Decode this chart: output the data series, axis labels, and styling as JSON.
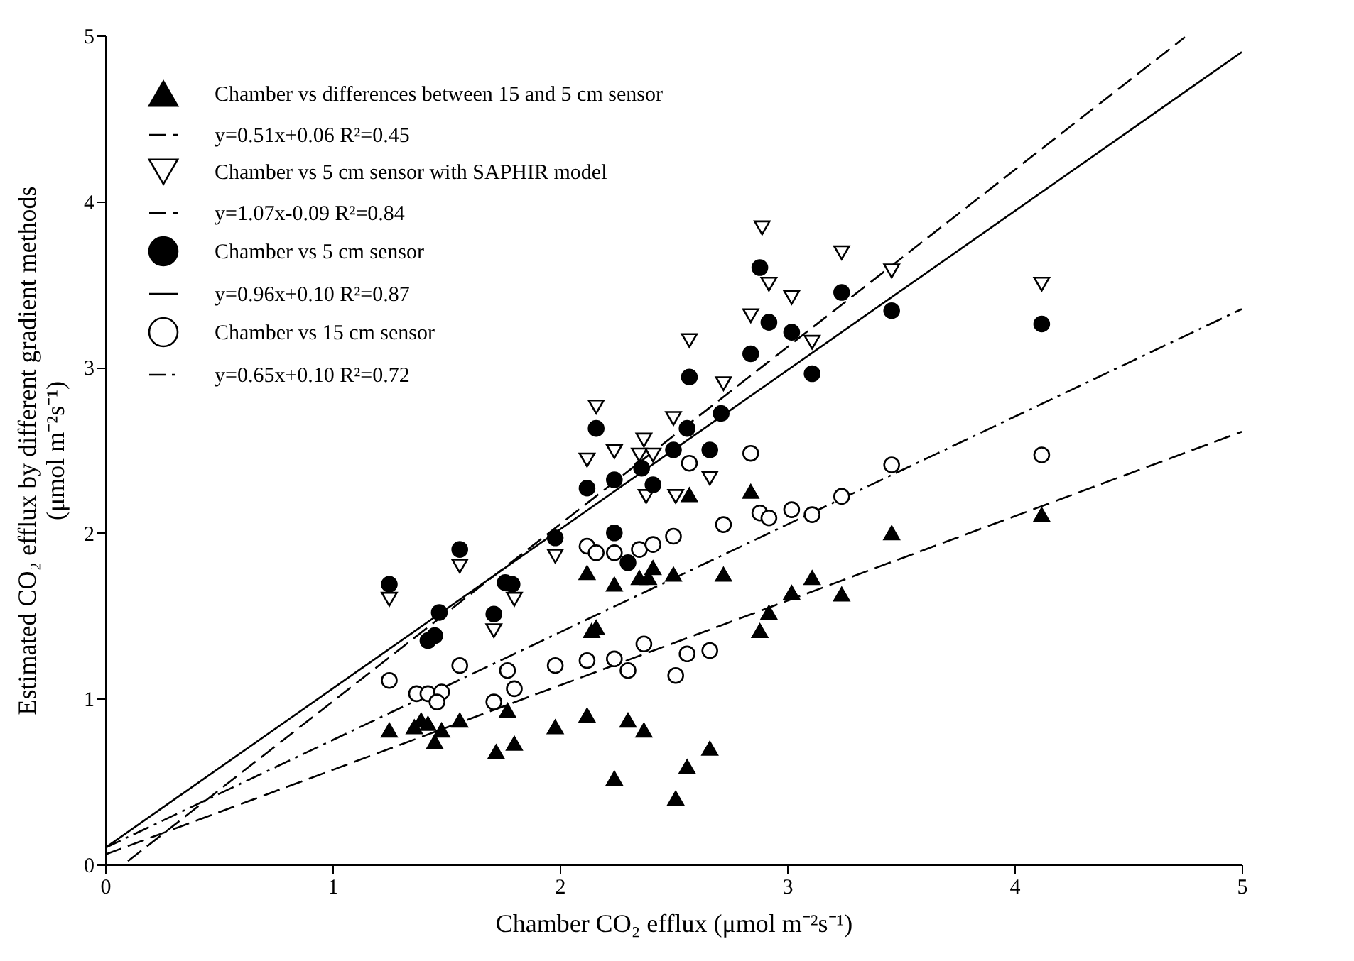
{
  "chart_data": {
    "type": "scatter",
    "xlabel": "Chamber CO₂ efflux  (μmol m⁻²s⁻¹)",
    "ylabel": [
      "Estimated CO₂ efflux by different gradient methods",
      "(μmol m⁻²s⁻¹)"
    ],
    "xlim": [
      0,
      5
    ],
    "ylim": [
      0,
      5
    ],
    "xticks": [
      0,
      1,
      2,
      3,
      4,
      5
    ],
    "yticks": [
      0,
      1,
      2,
      3,
      4,
      5
    ],
    "grid": false,
    "legend": "top left",
    "series": [
      {
        "name": "Chamber vs differences between 15 and 5 cm sensor",
        "type": "scatter",
        "marker": "triangle",
        "color": "#000000",
        "x": [
          1.25,
          1.36,
          1.39,
          1.42,
          1.45,
          1.48,
          1.56,
          1.72,
          1.77,
          1.8,
          1.98,
          2.12,
          2.12,
          2.14,
          2.16,
          2.24,
          2.35,
          2.39,
          2.41,
          2.5,
          2.57,
          2.72,
          2.84,
          2.3,
          2.37,
          2.24,
          2.51,
          2.56,
          2.66,
          2.92,
          2.88,
          3.02,
          3.11,
          3.24,
          3.46,
          4.12
        ],
        "values": [
          0.81,
          0.83,
          0.87,
          0.85,
          0.74,
          0.81,
          0.87,
          0.68,
          0.93,
          0.73,
          0.83,
          0.9,
          1.76,
          1.41,
          1.43,
          1.69,
          1.73,
          1.73,
          1.79,
          1.75,
          2.23,
          1.75,
          2.25,
          0.87,
          0.81,
          0.52,
          0.4,
          0.59,
          0.7,
          1.52,
          1.41,
          1.64,
          1.73,
          1.63,
          2.0,
          2.11
        ]
      },
      {
        "name": "y=0.51x+0.06   R²=0.45",
        "type": "line",
        "line_style": "dashed",
        "color": "#000000",
        "x": [
          0,
          5
        ],
        "values": [
          0.06,
          2.61
        ]
      },
      {
        "name": "Chamber vs  5 cm sensor with SAPHIR model",
        "type": "scatter",
        "marker": "triangle-down-open",
        "color": "#000000",
        "x": [
          1.25,
          1.56,
          1.8,
          1.71,
          1.98,
          2.12,
          2.16,
          2.24,
          2.37,
          2.35,
          2.41,
          2.38,
          2.5,
          2.51,
          2.57,
          2.66,
          2.72,
          2.84,
          2.92,
          3.02,
          2.89,
          3.24,
          3.11,
          3.46,
          4.12
        ],
        "values": [
          1.6,
          1.8,
          1.6,
          1.41,
          1.86,
          2.44,
          2.76,
          2.49,
          2.56,
          2.47,
          2.47,
          2.22,
          2.69,
          2.22,
          3.16,
          2.33,
          2.9,
          3.31,
          3.5,
          3.42,
          3.84,
          3.69,
          3.15,
          3.58,
          3.5
        ]
      },
      {
        "name": "y=1.07x-0.09   R²=0.84",
        "type": "line",
        "line_style": "dashed",
        "color": "#000000",
        "x": [
          0.1,
          4.75
        ],
        "values": [
          0.02,
          4.99
        ]
      },
      {
        "name": "Chamber vs 5 cm sensor",
        "type": "scatter",
        "marker": "circle",
        "color": "#000000",
        "x": [
          1.25,
          1.56,
          1.47,
          1.45,
          1.42,
          1.79,
          1.76,
          1.71,
          1.98,
          2.16,
          2.12,
          2.24,
          2.24,
          2.3,
          2.36,
          2.41,
          2.5,
          2.56,
          2.57,
          2.66,
          2.71,
          2.84,
          2.88,
          2.92,
          3.02,
          3.24,
          3.11,
          3.46,
          4.12
        ],
        "values": [
          1.69,
          1.9,
          1.52,
          1.38,
          1.35,
          1.69,
          1.7,
          1.51,
          1.97,
          2.63,
          2.27,
          2.32,
          2.0,
          1.82,
          2.39,
          2.29,
          2.5,
          2.63,
          2.94,
          2.5,
          2.72,
          3.08,
          3.6,
          3.27,
          3.21,
          3.45,
          2.96,
          3.34,
          3.26
        ]
      },
      {
        "name": "y=0.96x+0.10  R²=0.87",
        "type": "line",
        "line_style": "solid",
        "color": "#000000",
        "x": [
          0,
          5
        ],
        "values": [
          0.1,
          4.9
        ]
      },
      {
        "name": "Chamber vs  15 cm sensor",
        "type": "scatter",
        "marker": "circle-open",
        "color": "#000000",
        "x": [
          1.25,
          1.37,
          1.42,
          1.48,
          1.46,
          1.56,
          1.71,
          1.77,
          1.8,
          1.98,
          2.12,
          2.24,
          2.3,
          2.37,
          2.51,
          2.56,
          2.66,
          2.12,
          2.16,
          2.24,
          2.35,
          2.41,
          2.5,
          2.57,
          2.72,
          2.84,
          2.88,
          2.92,
          3.02,
          3.11,
          3.24,
          3.46,
          4.12
        ],
        "values": [
          1.11,
          1.03,
          1.03,
          1.04,
          0.98,
          1.2,
          0.98,
          1.17,
          1.06,
          1.2,
          1.23,
          1.24,
          1.17,
          1.33,
          1.14,
          1.27,
          1.29,
          1.92,
          1.88,
          1.88,
          1.9,
          1.93,
          1.98,
          2.42,
          2.05,
          2.48,
          2.12,
          2.09,
          2.14,
          2.11,
          2.22,
          2.41,
          2.47
        ]
      },
      {
        "name": "y=0.65x+0.10  R²=0.72",
        "type": "line",
        "line_style": "dotted",
        "color": "#000000",
        "x": [
          0,
          5
        ],
        "values": [
          0.1,
          3.35
        ]
      }
    ]
  }
}
